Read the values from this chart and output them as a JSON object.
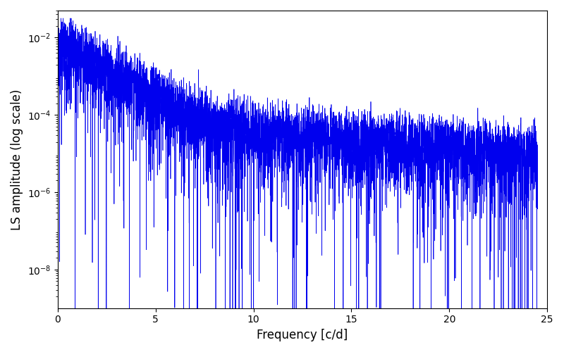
{
  "title": "",
  "xlabel": "Frequency [c/d]",
  "ylabel": "LS amplitude (log scale)",
  "xlim": [
    0,
    25
  ],
  "ylim": [
    1e-09,
    0.05
  ],
  "line_color": "#0000ee",
  "line_width": 0.5,
  "background_color": "#ffffff",
  "n_freqs": 6000,
  "freq_max": 24.5,
  "freq_min": 0.005,
  "seed": 77,
  "figsize": [
    8.0,
    5.0
  ],
  "dpi": 100
}
